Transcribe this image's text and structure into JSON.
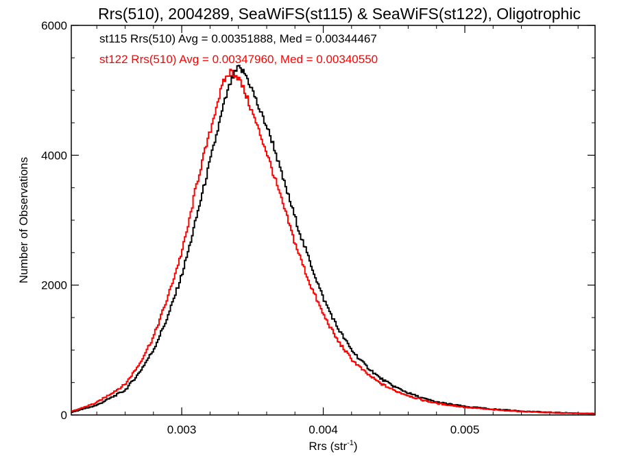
{
  "chart_data": {
    "type": "line",
    "title": "Rrs(510), 2004289, SeaWiFS(st115) & SeaWiFS(st122), Oligotrophic",
    "xlabel_main": "Rrs (str",
    "xlabel_sup": "-1",
    "xlabel_close": ")",
    "ylabel": "Number of Observations",
    "xlim": [
      0.00222,
      0.00592
    ],
    "ylim": [
      0,
      6000
    ],
    "x_ticks": [
      0.003,
      0.004,
      0.005
    ],
    "x_tick_labels": [
      "0.003",
      "0.004",
      "0.005"
    ],
    "y_ticks": [
      0,
      2000,
      4000,
      6000
    ],
    "y_tick_labels": [
      "0",
      "2000",
      "4000",
      "6000"
    ],
    "grid": false,
    "annotations": [
      {
        "text": "st115 Rrs(510) Avg = 0.00351888, Med = 0.00344467",
        "color": "#000000"
      },
      {
        "text": "st122 Rrs(510) Avg = 0.00347960, Med = 0.00340550",
        "color": "#ff0000"
      }
    ],
    "series": [
      {
        "color": "#000000",
        "x": [
          0.00222,
          0.0024,
          0.0026,
          0.0027,
          0.0028,
          0.0029,
          0.003,
          0.00305,
          0.0031,
          0.00315,
          0.0032,
          0.00325,
          0.0033,
          0.00335,
          0.0034,
          0.00345,
          0.0035,
          0.00355,
          0.0036,
          0.00365,
          0.0037,
          0.00375,
          0.0038,
          0.00385,
          0.0039,
          0.00395,
          0.004,
          0.0041,
          0.0042,
          0.0043,
          0.0044,
          0.0045,
          0.0046,
          0.0047,
          0.0048,
          0.005,
          0.0052,
          0.0054,
          0.0056,
          0.00592
        ],
        "values": [
          40,
          150,
          380,
          650,
          1000,
          1500,
          2150,
          2550,
          3000,
          3450,
          3900,
          4350,
          4800,
          5150,
          5350,
          5250,
          5000,
          4700,
          4450,
          4150,
          3750,
          3400,
          3050,
          2700,
          2400,
          2100,
          1800,
          1350,
          1000,
          760,
          570,
          440,
          340,
          260,
          200,
          130,
          90,
          60,
          40,
          20
        ]
      },
      {
        "color": "#ff0000",
        "x": [
          0.00222,
          0.0024,
          0.0026,
          0.0027,
          0.0028,
          0.0029,
          0.003,
          0.00305,
          0.0031,
          0.00315,
          0.0032,
          0.00325,
          0.0033,
          0.00335,
          0.0034,
          0.00345,
          0.0035,
          0.00355,
          0.0036,
          0.00365,
          0.0037,
          0.00375,
          0.0038,
          0.00385,
          0.0039,
          0.00395,
          0.004,
          0.0041,
          0.0042,
          0.0043,
          0.0044,
          0.0045,
          0.0046,
          0.0047,
          0.0048,
          0.005,
          0.0052,
          0.0054,
          0.0056,
          0.00592
        ],
        "values": [
          50,
          190,
          470,
          780,
          1200,
          1800,
          2500,
          2950,
          3500,
          3950,
          4350,
          4800,
          5150,
          5300,
          5200,
          4950,
          4650,
          4350,
          4050,
          3700,
          3350,
          3000,
          2650,
          2350,
          2050,
          1800,
          1550,
          1150,
          860,
          650,
          490,
          380,
          300,
          230,
          180,
          120,
          80,
          55,
          35,
          18
        ]
      }
    ]
  }
}
